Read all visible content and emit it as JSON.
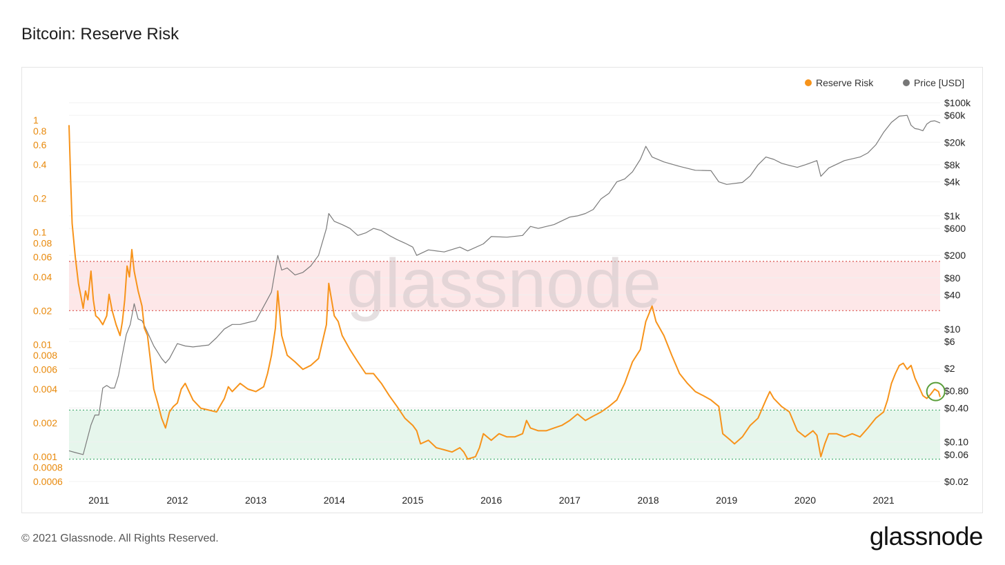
{
  "page": {
    "title": "Bitcoin: Reserve Risk",
    "footer": "© 2021 Glassnode. All Rights Reserved.",
    "logo": "glassnode",
    "watermark": "glassnode"
  },
  "colors": {
    "reserve_risk": "#f7931a",
    "price": "#7a7a7a",
    "red_band": "#fde7e8",
    "red_line": "#d9534f",
    "green_band": "#e6f6ec",
    "green_line": "#3fa86b",
    "circle": "#5a9e3a"
  },
  "chart_data": {
    "type": "line",
    "title": "Bitcoin: Reserve Risk",
    "legend": {
      "placement": "top-right",
      "entries": [
        "Reserve Risk",
        "Price [USD]"
      ]
    },
    "grid": true,
    "x_ticks": [
      "2011",
      "2012",
      "2013",
      "2014",
      "2015",
      "2016",
      "2017",
      "2018",
      "2019",
      "2020",
      "2021"
    ],
    "x_range": [
      2010.62,
      2021.72
    ],
    "left_axis": {
      "scale": "log",
      "range": [
        0.0006,
        1
      ],
      "tick_labels": [
        "1",
        "0.8",
        "0.6",
        "0.4",
        "0.2",
        "0.1",
        "0.08",
        "0.06",
        "0.04",
        "0.02",
        "0.01",
        "0.008",
        "0.006",
        "0.004",
        "0.002",
        "0.001",
        "0.0008",
        "0.0006"
      ],
      "tick_values": [
        1,
        0.8,
        0.6,
        0.4,
        0.2,
        0.1,
        0.08,
        0.06,
        0.04,
        0.02,
        0.01,
        0.008,
        0.006,
        0.004,
        0.002,
        0.001,
        0.0008,
        0.0006
      ]
    },
    "right_axis": {
      "scale": "log",
      "range": [
        0.02,
        100000
      ],
      "tick_labels": [
        "$100k",
        "$60k",
        "$20k",
        "$8k",
        "$4k",
        "$1k",
        "$600",
        "$200",
        "$80",
        "$40",
        "$10",
        "$6",
        "$2",
        "$0.80",
        "$0.40",
        "$0.10",
        "$0.06",
        "$0.02"
      ],
      "tick_values": [
        100000,
        60000,
        20000,
        8000,
        4000,
        1000,
        600,
        200,
        80,
        40,
        10,
        6,
        2,
        0.8,
        0.4,
        0.1,
        0.06,
        0.02
      ]
    },
    "bands": [
      {
        "name": "red",
        "from": 0.02,
        "to": 0.055
      },
      {
        "name": "green",
        "from": 0.00095,
        "to": 0.0026
      }
    ],
    "series": [
      {
        "name": "Reserve Risk",
        "axis": "left",
        "x": [
          2010.62,
          2010.64,
          2010.66,
          2010.7,
          2010.74,
          2010.78,
          2010.8,
          2010.83,
          2010.86,
          2010.9,
          2010.93,
          2010.96,
          2011.0,
          2011.05,
          2011.1,
          2011.13,
          2011.17,
          2011.22,
          2011.27,
          2011.3,
          2011.33,
          2011.36,
          2011.39,
          2011.42,
          2011.45,
          2011.5,
          2011.55,
          2011.58,
          2011.62,
          2011.66,
          2011.7,
          2011.75,
          2011.8,
          2011.85,
          2011.9,
          2011.95,
          2012.0,
          2012.05,
          2012.1,
          2012.2,
          2012.3,
          2012.4,
          2012.5,
          2012.6,
          2012.65,
          2012.7,
          2012.8,
          2012.9,
          2013.0,
          2013.1,
          2013.15,
          2013.2,
          2013.25,
          2013.28,
          2013.33,
          2013.4,
          2013.5,
          2013.6,
          2013.7,
          2013.8,
          2013.9,
          2013.93,
          2014.0,
          2014.05,
          2014.1,
          2014.2,
          2014.3,
          2014.4,
          2014.5,
          2014.6,
          2014.7,
          2014.8,
          2014.9,
          2015.0,
          2015.05,
          2015.1,
          2015.2,
          2015.3,
          2015.4,
          2015.5,
          2015.6,
          2015.65,
          2015.7,
          2015.8,
          2015.85,
          2015.9,
          2016.0,
          2016.1,
          2016.2,
          2016.3,
          2016.4,
          2016.45,
          2016.5,
          2016.6,
          2016.7,
          2016.8,
          2016.9,
          2017.0,
          2017.1,
          2017.2,
          2017.3,
          2017.4,
          2017.5,
          2017.6,
          2017.7,
          2017.8,
          2017.9,
          2017.97,
          2018.05,
          2018.1,
          2018.2,
          2018.3,
          2018.4,
          2018.5,
          2018.6,
          2018.7,
          2018.8,
          2018.9,
          2018.95,
          2019.05,
          2019.1,
          2019.2,
          2019.3,
          2019.4,
          2019.5,
          2019.55,
          2019.6,
          2019.7,
          2019.8,
          2019.9,
          2020.0,
          2020.1,
          2020.15,
          2020.2,
          2020.25,
          2020.3,
          2020.4,
          2020.5,
          2020.6,
          2020.7,
          2020.8,
          2020.9,
          2021.0,
          2021.05,
          2021.1,
          2021.15,
          2021.2,
          2021.25,
          2021.3,
          2021.35,
          2021.4,
          2021.45,
          2021.5,
          2021.55,
          2021.6,
          2021.65,
          2021.7,
          2021.72
        ],
        "values": [
          0.9,
          0.3,
          0.12,
          0.06,
          0.035,
          0.025,
          0.021,
          0.03,
          0.025,
          0.045,
          0.025,
          0.018,
          0.017,
          0.015,
          0.018,
          0.028,
          0.02,
          0.015,
          0.012,
          0.016,
          0.025,
          0.05,
          0.04,
          0.07,
          0.045,
          0.03,
          0.022,
          0.014,
          0.012,
          0.007,
          0.004,
          0.003,
          0.0022,
          0.0018,
          0.0025,
          0.0028,
          0.003,
          0.004,
          0.0045,
          0.0032,
          0.0027,
          0.0026,
          0.0025,
          0.0033,
          0.0042,
          0.0038,
          0.0045,
          0.004,
          0.0038,
          0.0042,
          0.0055,
          0.008,
          0.014,
          0.03,
          0.012,
          0.008,
          0.007,
          0.006,
          0.0065,
          0.0075,
          0.015,
          0.035,
          0.018,
          0.016,
          0.012,
          0.009,
          0.007,
          0.0055,
          0.0055,
          0.0045,
          0.0035,
          0.0028,
          0.0022,
          0.0019,
          0.0017,
          0.0013,
          0.0014,
          0.0012,
          0.00115,
          0.0011,
          0.0012,
          0.0011,
          0.00095,
          0.001,
          0.0012,
          0.0016,
          0.0014,
          0.0016,
          0.0015,
          0.0015,
          0.0016,
          0.0021,
          0.0018,
          0.0017,
          0.0017,
          0.0018,
          0.0019,
          0.0021,
          0.0024,
          0.0021,
          0.0023,
          0.0025,
          0.0028,
          0.0032,
          0.0045,
          0.007,
          0.009,
          0.016,
          0.022,
          0.016,
          0.012,
          0.008,
          0.0055,
          0.0045,
          0.0038,
          0.0035,
          0.0032,
          0.0028,
          0.0016,
          0.0014,
          0.0013,
          0.0015,
          0.0019,
          0.0022,
          0.0032,
          0.0038,
          0.0033,
          0.0028,
          0.0025,
          0.0017,
          0.0015,
          0.0017,
          0.00155,
          0.001,
          0.0013,
          0.0016,
          0.0016,
          0.0015,
          0.0016,
          0.0015,
          0.0018,
          0.0022,
          0.0025,
          0.0032,
          0.0045,
          0.0055,
          0.0065,
          0.0068,
          0.006,
          0.0065,
          0.005,
          0.0042,
          0.0035,
          0.0033,
          0.0036,
          0.004,
          0.0038,
          0.0034
        ]
      },
      {
        "name": "Price [USD]",
        "axis": "right",
        "x": [
          2010.62,
          2010.7,
          2010.8,
          2010.9,
          2010.95,
          2011.0,
          2011.05,
          2011.1,
          2011.15,
          2011.2,
          2011.25,
          2011.3,
          2011.35,
          2011.4,
          2011.45,
          2011.5,
          2011.55,
          2011.6,
          2011.7,
          2011.8,
          2011.85,
          2011.9,
          2012.0,
          2012.1,
          2012.2,
          2012.3,
          2012.4,
          2012.5,
          2012.6,
          2012.7,
          2012.8,
          2012.9,
          2013.0,
          2013.1,
          2013.2,
          2013.28,
          2013.33,
          2013.4,
          2013.5,
          2013.6,
          2013.7,
          2013.8,
          2013.9,
          2013.93,
          2014.0,
          2014.1,
          2014.2,
          2014.3,
          2014.4,
          2014.5,
          2014.6,
          2014.7,
          2014.8,
          2014.9,
          2015.0,
          2015.05,
          2015.2,
          2015.4,
          2015.6,
          2015.7,
          2015.9,
          2016.0,
          2016.2,
          2016.4,
          2016.5,
          2016.6,
          2016.8,
          2017.0,
          2017.1,
          2017.2,
          2017.3,
          2017.4,
          2017.5,
          2017.6,
          2017.7,
          2017.8,
          2017.9,
          2017.97,
          2018.05,
          2018.2,
          2018.4,
          2018.6,
          2018.8,
          2018.9,
          2019.0,
          2019.2,
          2019.3,
          2019.4,
          2019.5,
          2019.6,
          2019.7,
          2019.8,
          2019.9,
          2020.0,
          2020.15,
          2020.2,
          2020.3,
          2020.5,
          2020.7,
          2020.8,
          2020.9,
          2021.0,
          2021.1,
          2021.2,
          2021.3,
          2021.35,
          2021.4,
          2021.45,
          2021.5,
          2021.55,
          2021.6,
          2021.65,
          2021.72
        ],
        "values": [
          0.07,
          0.065,
          0.06,
          0.2,
          0.3,
          0.3,
          0.9,
          1.0,
          0.9,
          0.9,
          1.5,
          3.5,
          8.0,
          12.0,
          28.0,
          15.0,
          14.0,
          10.0,
          5.0,
          3.0,
          2.5,
          3.0,
          5.5,
          5.0,
          4.8,
          5.0,
          5.2,
          7.0,
          10.0,
          12.0,
          12.0,
          13.0,
          14.0,
          25.0,
          45.0,
          200.0,
          110.0,
          120.0,
          90.0,
          100.0,
          130.0,
          200.0,
          600.0,
          1100.0,
          800.0,
          700.0,
          600.0,
          450.0,
          500.0,
          600.0,
          550.0,
          450.0,
          380.0,
          330.0,
          280.0,
          200.0,
          250.0,
          230.0,
          280.0,
          240.0,
          320.0,
          430.0,
          420.0,
          450.0,
          650.0,
          600.0,
          700.0,
          950.0,
          1000.0,
          1100.0,
          1300.0,
          2000.0,
          2500.0,
          4000.0,
          4500.0,
          6000.0,
          10000.0,
          17000.0,
          11000.0,
          9000.0,
          7500.0,
          6400.0,
          6300.0,
          4000.0,
          3600.0,
          3900.0,
          5100.0,
          8000.0,
          11000.0,
          10000.0,
          8500.0,
          7800.0,
          7200.0,
          8000.0,
          9500.0,
          5000.0,
          7000.0,
          9500.0,
          11000.0,
          13000.0,
          18000.0,
          30000.0,
          45000.0,
          58000.0,
          60000.0,
          40000.0,
          35000.0,
          34000.0,
          32000.0,
          42000.0,
          47000.0,
          48000.0,
          44000.0
        ]
      }
    ]
  }
}
